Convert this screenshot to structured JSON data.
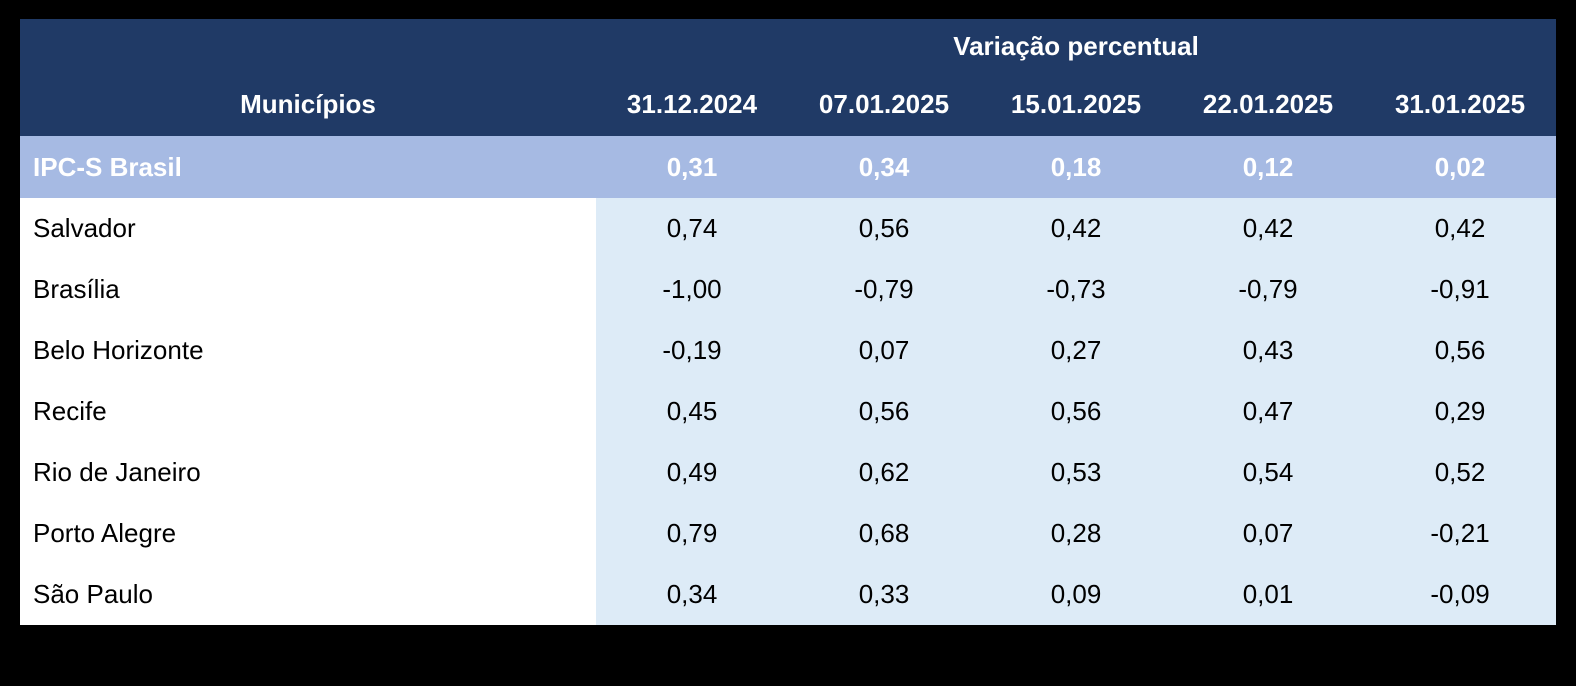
{
  "table": {
    "group_header": "Variação percentual",
    "label_column_header": "Municípios",
    "date_columns": [
      "31.12.2024",
      "07.01.2025",
      "15.01.2025",
      "22.01.2025",
      "31.01.2025"
    ],
    "highlight_row": {
      "label": "IPC-S Brasil",
      "values": [
        "0,31",
        "0,34",
        "0,18",
        "0,12",
        "0,02"
      ]
    },
    "rows": [
      {
        "label": "Salvador",
        "values": [
          "0,74",
          "0,56",
          "0,42",
          "0,42",
          "0,42"
        ]
      },
      {
        "label": "Brasília",
        "values": [
          "-1,00",
          "-0,79",
          "-0,73",
          "-0,79",
          "-0,91"
        ]
      },
      {
        "label": "Belo Horizonte",
        "values": [
          "-0,19",
          "0,07",
          "0,27",
          "0,43",
          "0,56"
        ]
      },
      {
        "label": "Recife",
        "values": [
          "0,45",
          "0,56",
          "0,56",
          "0,47",
          "0,29"
        ]
      },
      {
        "label": "Rio de Janeiro",
        "values": [
          "0,49",
          "0,62",
          "0,53",
          "0,54",
          "0,52"
        ]
      },
      {
        "label": "Porto Alegre",
        "values": [
          "0,79",
          "0,68",
          "0,28",
          "0,07",
          "-0,21"
        ]
      },
      {
        "label": "São Paulo",
        "values": [
          "0,34",
          "0,33",
          "0,09",
          "0,01",
          "-0,09"
        ]
      }
    ],
    "colors": {
      "header_bg": "#203A66",
      "header_text": "#FFFFFF",
      "highlight_bg": "#A6BAE3",
      "highlight_text": "#FFFFFF",
      "data_bg": "#DDEBF7",
      "label_bg": "#FFFFFF",
      "body_text": "#000000",
      "page_bg": "#000000"
    }
  },
  "chart_data": {
    "type": "table",
    "title": "Variação percentual",
    "columns": [
      "Municípios",
      "31.12.2024",
      "07.01.2025",
      "15.01.2025",
      "22.01.2025",
      "31.01.2025"
    ],
    "rows": [
      [
        "IPC-S Brasil",
        0.31,
        0.34,
        0.18,
        0.12,
        0.02
      ],
      [
        "Salvador",
        0.74,
        0.56,
        0.42,
        0.42,
        0.42
      ],
      [
        "Brasília",
        -1.0,
        -0.79,
        -0.73,
        -0.79,
        -0.91
      ],
      [
        "Belo Horizonte",
        -0.19,
        0.07,
        0.27,
        0.43,
        0.56
      ],
      [
        "Recife",
        0.45,
        0.56,
        0.56,
        0.47,
        0.29
      ],
      [
        "Rio de Janeiro",
        0.49,
        0.62,
        0.53,
        0.54,
        0.52
      ],
      [
        "Porto Alegre",
        0.79,
        0.68,
        0.28,
        0.07,
        -0.21
      ],
      [
        "São Paulo",
        0.34,
        0.33,
        0.09,
        0.01,
        -0.09
      ]
    ],
    "layout_hints": {
      "highlighted_row": "IPC-S Brasil",
      "decimal_separator": "comma",
      "first_column_align": "left",
      "value_columns_align": "center"
    }
  }
}
